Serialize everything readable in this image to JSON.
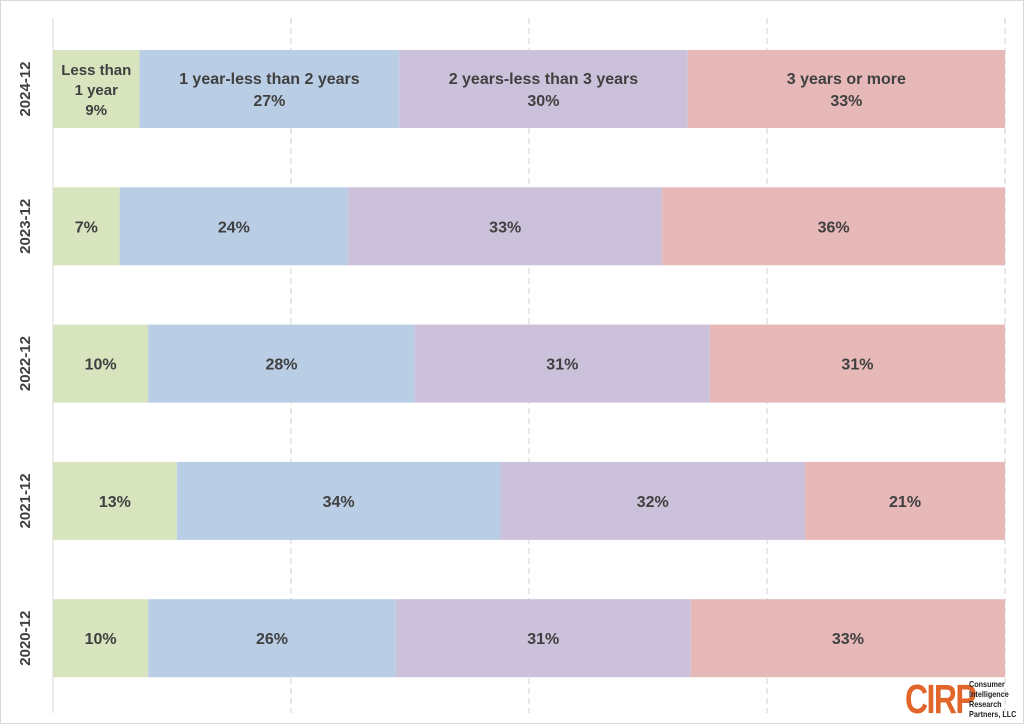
{
  "chart_data": {
    "type": "bar",
    "orientation": "horizontal",
    "stacked": true,
    "percent_stacked": true,
    "categories": [
      "2024-12",
      "2023-12",
      "2022-12",
      "2021-12",
      "2020-12"
    ],
    "series": [
      {
        "name": "Less than 1 year",
        "values": [
          9,
          7,
          10,
          13,
          10
        ],
        "color": "#d7e4bd"
      },
      {
        "name": "1 year-less than 2 years",
        "values": [
          27,
          24,
          28,
          34,
          26
        ],
        "color": "#b9cde5"
      },
      {
        "name": "2 years-less than 3 years",
        "values": [
          30,
          33,
          31,
          32,
          31
        ],
        "color": "#ccc1da"
      },
      {
        "name": "3 years or more",
        "values": [
          33,
          36,
          31,
          21,
          33
        ],
        "color": "#e6b9b8"
      }
    ],
    "data_labels": [
      [
        "Less than\n1 year\n9%",
        "1 year-less than 2 years\n27%",
        "2 years-less than 3 years\n30%",
        "3 years or more\n33%"
      ],
      [
        "7%",
        "24%",
        "33%",
        "36%"
      ],
      [
        "10%",
        "28%",
        "31%",
        "31%"
      ],
      [
        "13%",
        "34%",
        "32%",
        "21%"
      ],
      [
        "10%",
        "26%",
        "31%",
        "33%"
      ]
    ],
    "xlim": [
      0,
      100
    ],
    "grid": {
      "vertical": true,
      "style": "dashed"
    },
    "legend": "none"
  },
  "logo": {
    "mark": "CIRP",
    "lines": [
      "Consumer",
      "Intelligence",
      "Research",
      "Partners, LLC"
    ]
  }
}
